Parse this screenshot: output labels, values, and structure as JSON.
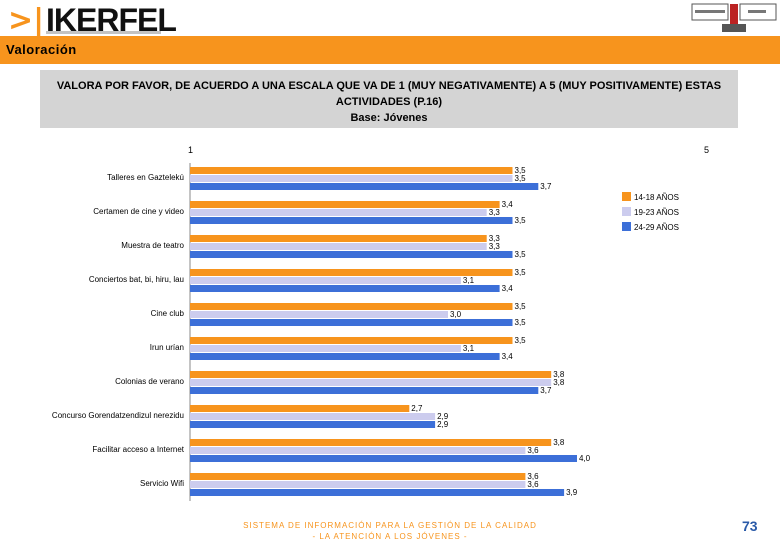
{
  "header": {
    "logo_text": "IKERFEL",
    "logo_chevron": ">|",
    "section_title": "Valoración"
  },
  "question": {
    "line1": "VALORA POR FAVOR, DE ACUERDO A UNA ESCALA QUE VA DE 1 (MUY NEGATIVAMENTE) A 5 (MUY POSITIVAMENTE) ESTAS",
    "line2": "ACTIVIDADES (P.16)",
    "line3": "Base: Jóvenes"
  },
  "footer": {
    "line1": "SISTEMA DE INFORMACIÓN PARA LA GESTIÓN DE LA CALIDAD",
    "line2": "- LA ATENCIÓN A LOS JÓVENES -"
  },
  "page_number": "73",
  "chart_data": {
    "type": "bar",
    "orientation": "horizontal",
    "xlim": [
      1,
      5
    ],
    "axis_min_label": "1",
    "axis_max_label": "5",
    "categories": [
      "Talleres en Gaztelekú",
      "Certamen de cine y video",
      "Muestra de teatro",
      "Conciertos bat, bi, hiru, lau",
      "Cine club",
      "Irun urían",
      "Colonias de verano",
      "Concurso Gorendatzendizul nerezidu",
      "Facilitar acceso a Internet",
      "Servicio Wifi"
    ],
    "series": [
      {
        "name": "14-18 AÑOS",
        "color": "#f7941d",
        "values": [
          3.5,
          3.4,
          3.3,
          3.5,
          3.5,
          3.5,
          3.8,
          2.7,
          3.8,
          3.6
        ],
        "labels": [
          "3,5",
          "3,4",
          "3,3",
          "3,5",
          "3,5",
          "3,5",
          "3,8",
          "2,7",
          "3,8",
          "3,6"
        ]
      },
      {
        "name": "19-23 AÑOS",
        "color": "#ccccee",
        "values": [
          3.5,
          3.3,
          3.3,
          3.1,
          3.0,
          3.1,
          3.8,
          2.9,
          3.6,
          3.6
        ],
        "labels": [
          "3,5",
          "3,3",
          "3,3",
          "3,1",
          "3,0",
          "3,1",
          "3,8",
          "2,9",
          "3,6",
          "3,6"
        ]
      },
      {
        "name": "24-29 AÑOS",
        "color": "#3c6fd8",
        "values": [
          3.7,
          3.5,
          3.5,
          3.4,
          3.5,
          3.4,
          3.7,
          2.9,
          4.0,
          3.9
        ],
        "labels": [
          "3,7",
          "3,5",
          "3,5",
          "3,4",
          "3,5",
          "3,4",
          "3,7",
          "2,9",
          "4,0",
          "3,9"
        ]
      }
    ],
    "legend_position": "right"
  }
}
